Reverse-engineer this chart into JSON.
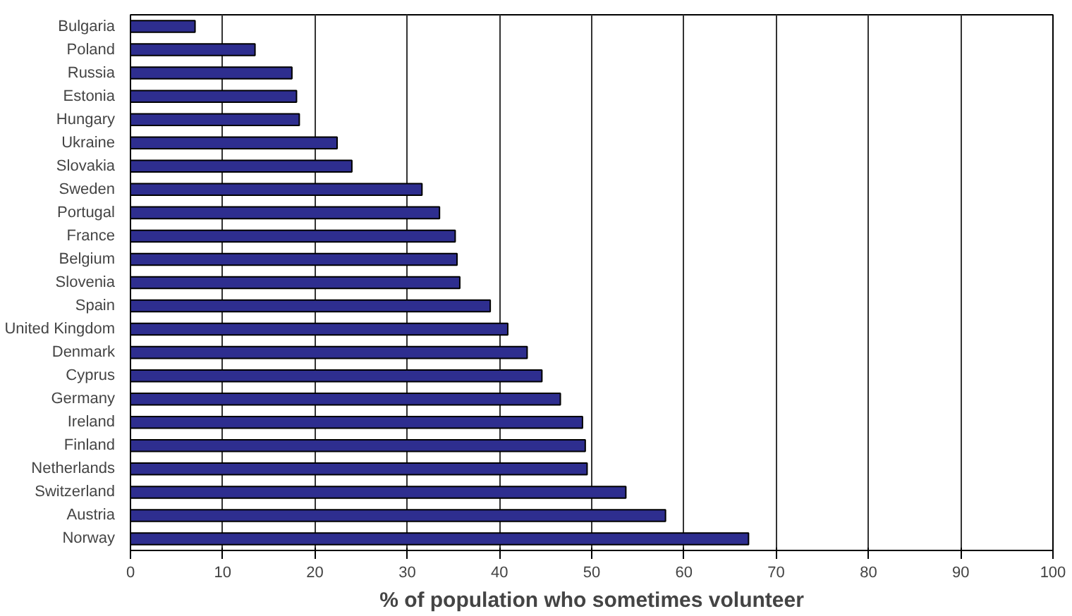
{
  "chart_data": {
    "type": "bar",
    "orientation": "horizontal",
    "xlabel": "% of population who sometimes volunteer",
    "categories": [
      "Bulgaria",
      "Poland",
      "Russia",
      "Estonia",
      "Hungary",
      "Ukraine",
      "Slovakia",
      "Sweden",
      "Portugal",
      "France",
      "Belgium",
      "Slovenia",
      "Spain",
      "United Kingdom",
      "Denmark",
      "Cyprus",
      "Germany",
      "Ireland",
      "Finland",
      "Netherlands",
      "Switzerland",
      "Austria",
      "Norway"
    ],
    "values": [
      7.0,
      13.5,
      17.5,
      18.0,
      18.3,
      22.4,
      24.0,
      31.6,
      33.5,
      35.2,
      35.4,
      35.7,
      39.0,
      40.9,
      43.0,
      44.6,
      46.6,
      49.0,
      49.3,
      49.5,
      53.7,
      58.0,
      67.0
    ],
    "color": "#2e2e8f",
    "xlim": [
      0,
      100
    ],
    "xticks": [
      0,
      10,
      20,
      30,
      40,
      50,
      60,
      70,
      80,
      90,
      100
    ],
    "grid": "x"
  }
}
